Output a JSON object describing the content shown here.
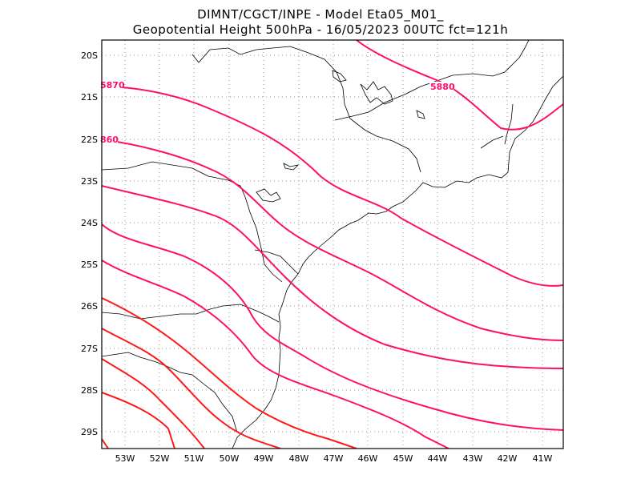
{
  "header": {
    "line1": "DIMNT/CGCT/INPE -  Model Eta05_M01_",
    "line2": "Geopotential Height 500hPa -  16/05/2023 00UTC fct=121h"
  },
  "axes": {
    "lat_labels": [
      "20S",
      "21S",
      "22S",
      "23S",
      "24S",
      "25S",
      "26S",
      "27S",
      "28S",
      "29S"
    ],
    "lon_labels": [
      "53W",
      "52W",
      "51W",
      "50W",
      "49W",
      "48W",
      "47W",
      "46W",
      "45W",
      "44W",
      "43W",
      "42W",
      "41W"
    ]
  },
  "contour_labels": [
    "5870",
    "860",
    "5880"
  ],
  "colors": {
    "contour_magenta": "#ff0f6a",
    "contour_red": "#ff1a1a",
    "coast": "#000000",
    "grid": "#9a9a9a"
  }
}
